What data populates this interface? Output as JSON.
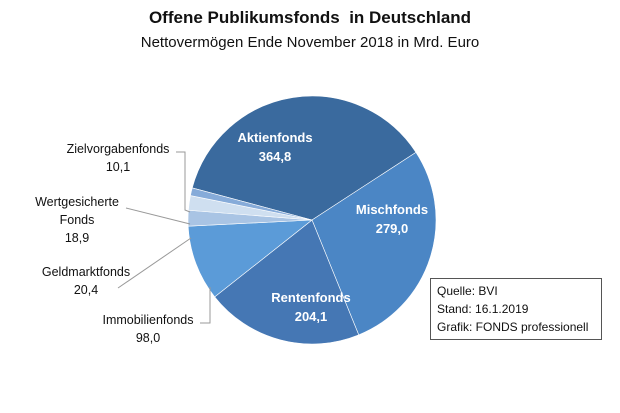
{
  "chart_data": {
    "type": "pie",
    "title": "Offene Publikumsfonds  in Deutschland",
    "subtitle": "Nettovermögen Ende November 2018 in Mrd. Euro",
    "slices": [
      {
        "label": "Aktienfonds",
        "label_lines": [
          "Aktienfonds"
        ],
        "value": 364.8,
        "value_label": "364,8",
        "color": "#3a6a9e"
      },
      {
        "label": "Mischfonds",
        "label_lines": [
          "Mischfonds"
        ],
        "value": 279.0,
        "value_label": "279,0",
        "color": "#4b86c5"
      },
      {
        "label": "Rentenfonds",
        "label_lines": [
          "Rentenfonds"
        ],
        "value": 204.1,
        "value_label": "204,1",
        "color": "#4577b4"
      },
      {
        "label": "Immobilienfonds",
        "label_lines": [
          "Immobilienfonds"
        ],
        "value": 98.0,
        "value_label": "98,0",
        "color": "#5b9bd8"
      },
      {
        "label": "Geldmarktfonds",
        "label_lines": [
          "Geldmarktfonds"
        ],
        "value": 20.4,
        "value_label": "20,4",
        "color": "#a9c4e4"
      },
      {
        "label": "Wertgesicherte Fonds",
        "label_lines": [
          "Wertgesicherte",
          "Fonds"
        ],
        "value": 18.9,
        "value_label": "18,9",
        "color": "#cfdff0"
      },
      {
        "label": "Zielvorgabenfonds",
        "label_lines": [
          "Zielvorgabenfonds"
        ],
        "value": 10.1,
        "value_label": "10,1",
        "color": "#86abd9"
      }
    ]
  },
  "source_box": {
    "line1": "Quelle: BVI",
    "line2": "Stand: 16.1.2019",
    "line3": "Grafik: FONDS professionell"
  }
}
